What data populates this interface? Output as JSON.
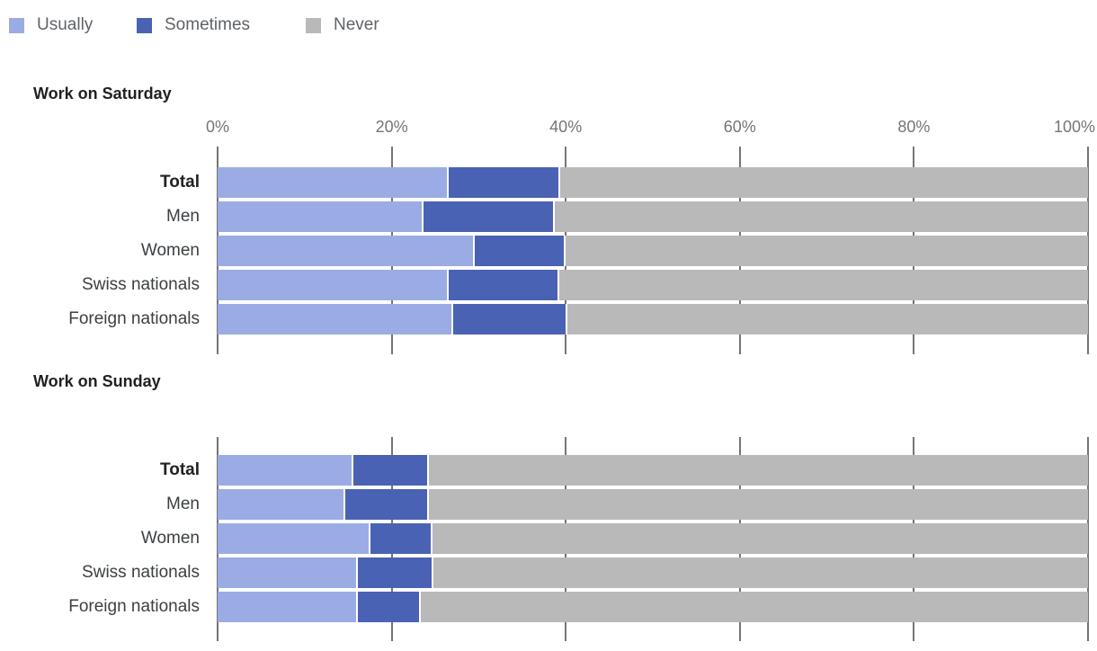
{
  "legend": {
    "items": [
      {
        "label": "Usually",
        "color": "#9AACE3"
      },
      {
        "label": "Sometimes",
        "color": "#4A62B3"
      },
      {
        "label": "Never",
        "color": "#B9B9B9"
      }
    ]
  },
  "colors": {
    "usually": "#9AACE3",
    "sometimes": "#4A62B3",
    "never": "#B9B9B9",
    "grid": "#757575",
    "axis_text": "#757575",
    "label_text": "#3c4043",
    "title_text": "#202124"
  },
  "chart_data": [
    {
      "type": "bar",
      "stacked": true,
      "orientation": "horizontal",
      "title": "Work on Saturday",
      "categories": [
        "Total",
        "Men",
        "Women",
        "Swiss nationals",
        "Foreign nationals"
      ],
      "emphasized_category": "Total",
      "series": [
        {
          "name": "Usually",
          "color": "#9AACE3",
          "values": [
            26.5,
            23.5,
            29.5,
            26.5,
            27.0
          ]
        },
        {
          "name": "Sometimes",
          "color": "#4A62B3",
          "values": [
            12.6,
            15.0,
            10.2,
            12.5,
            12.9
          ]
        },
        {
          "name": "Never",
          "color": "#B9B9B9",
          "values": [
            60.9,
            61.5,
            60.3,
            61.0,
            60.1
          ]
        }
      ],
      "x_ticks": [
        "0%",
        "20%",
        "40%",
        "60%",
        "80%",
        "100%"
      ],
      "xlim": [
        0,
        100
      ],
      "unit": "%",
      "x_tick_labels_visible": true,
      "legend_position": "top"
    },
    {
      "type": "bar",
      "stacked": true,
      "orientation": "horizontal",
      "title": "Work on Sunday",
      "categories": [
        "Total",
        "Men",
        "Women",
        "Swiss nationals",
        "Foreign nationals"
      ],
      "emphasized_category": "Total",
      "series": [
        {
          "name": "Usually",
          "color": "#9AACE3",
          "values": [
            15.5,
            14.5,
            17.4,
            16.0,
            16.0
          ]
        },
        {
          "name": "Sometimes",
          "color": "#4A62B3",
          "values": [
            8.5,
            9.5,
            7.0,
            8.5,
            7.0
          ]
        },
        {
          "name": "Never",
          "color": "#B9B9B9",
          "values": [
            76.0,
            76.0,
            75.6,
            75.5,
            77.0
          ]
        }
      ],
      "x_ticks": [
        "0%",
        "20%",
        "40%",
        "60%",
        "80%",
        "100%"
      ],
      "xlim": [
        0,
        100
      ],
      "unit": "%",
      "x_tick_labels_visible": false,
      "legend_position": "none"
    }
  ]
}
